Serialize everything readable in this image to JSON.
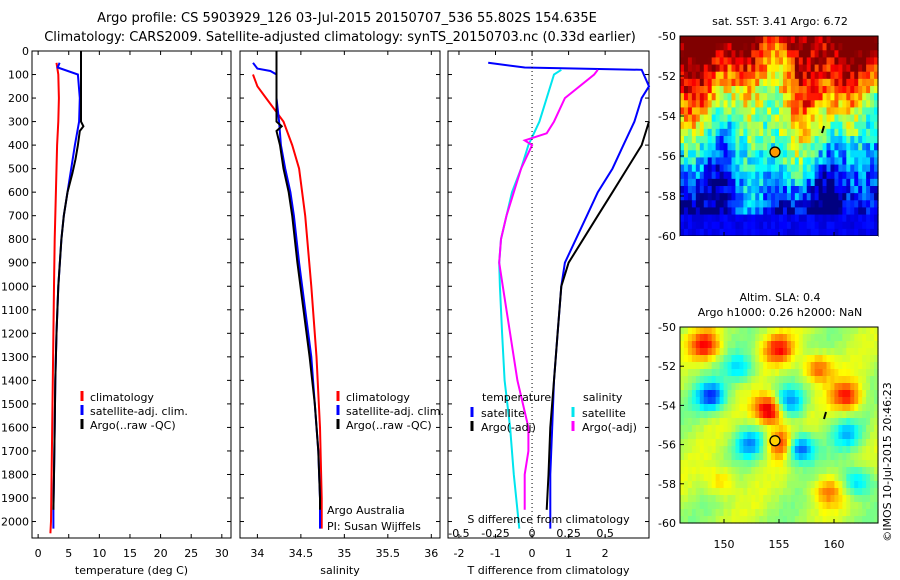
{
  "header": {
    "line1": "Argo profile: CS 5903929_126 03-Jul-2015 20150707_536 55.802S 154.635E",
    "line2": "Climatology: CARS2009. Satellite-adjusted climatology: synTS_20150703.nc (0.33d earlier)"
  },
  "watermark": "©IMOS 10-Jul-2015 20:46:23",
  "colors": {
    "red": "#ff0000",
    "blue": "#0000ff",
    "black": "#000000",
    "cyan": "#00e5ee",
    "magenta": "#ff00ff"
  },
  "chart_data": [
    {
      "type": "line",
      "id": "temperature",
      "xlabel": "temperature (deg C)",
      "ylabel": "",
      "xlim": [
        -1,
        31.5
      ],
      "ylim": [
        2070,
        0
      ],
      "xticks": [
        0,
        5,
        10,
        15,
        20,
        25,
        30
      ],
      "yticks": [
        0,
        100,
        200,
        300,
        400,
        500,
        600,
        700,
        800,
        900,
        1000,
        1100,
        1200,
        1300,
        1400,
        1500,
        1600,
        1700,
        1800,
        1900,
        2000
      ],
      "legend": [
        "climatology",
        "satellite-adj. clim.",
        "Argo(..raw -QC)"
      ],
      "series": [
        {
          "name": "climatology",
          "color": "red",
          "points": [
            [
              3.0,
              50
            ],
            [
              3.3,
              100
            ],
            [
              3.4,
              200
            ],
            [
              3.3,
              300
            ],
            [
              3.1,
              400
            ],
            [
              2.9,
              600
            ],
            [
              2.7,
              800
            ],
            [
              2.6,
              1000
            ],
            [
              2.5,
              1200
            ],
            [
              2.4,
              1400
            ],
            [
              2.3,
              1600
            ],
            [
              2.2,
              1800
            ],
            [
              2.1,
              2000
            ],
            [
              2.0,
              2050
            ]
          ]
        },
        {
          "name": "satellite-adj. clim.",
          "color": "blue",
          "points": [
            [
              3.5,
              50
            ],
            [
              3.2,
              70
            ],
            [
              6.5,
              100
            ],
            [
              6.8,
              200
            ],
            [
              6.7,
              300
            ],
            [
              6.0,
              400
            ],
            [
              5.4,
              500
            ],
            [
              4.8,
              600
            ],
            [
              4.2,
              700
            ],
            [
              3.8,
              800
            ],
            [
              3.3,
              1000
            ],
            [
              3.0,
              1200
            ],
            [
              2.8,
              1400
            ],
            [
              2.7,
              1600
            ],
            [
              2.6,
              1800
            ],
            [
              2.5,
              1950
            ],
            [
              2.5,
              2030
            ]
          ]
        },
        {
          "name": "Argo(..raw -QC)",
          "color": "black",
          "points": [
            [
              7.0,
              0
            ],
            [
              7.0,
              100
            ],
            [
              7.0,
              200
            ],
            [
              7.0,
              300
            ],
            [
              7.4,
              320
            ],
            [
              6.8,
              340
            ],
            [
              6.5,
              400
            ],
            [
              6.3,
              430
            ],
            [
              6.1,
              460
            ],
            [
              5.6,
              520
            ],
            [
              4.8,
              600
            ],
            [
              4.2,
              700
            ],
            [
              3.8,
              800
            ],
            [
              3.3,
              1000
            ],
            [
              3.0,
              1200
            ],
            [
              2.8,
              1400
            ],
            [
              2.7,
              1600
            ],
            [
              2.6,
              1800
            ],
            [
              2.5,
              1950
            ]
          ]
        }
      ]
    },
    {
      "type": "line",
      "id": "salinity",
      "xlabel": "salinity",
      "ylabel": "",
      "xlim": [
        33.8,
        36.1
      ],
      "ylim": [
        2070,
        0
      ],
      "xticks": [
        34,
        34.5,
        35,
        35.5,
        36
      ],
      "legend": [
        "climatology",
        "satellite-adj. clim.",
        "Argo(..raw -QC)"
      ],
      "footer": [
        "Argo Australia",
        "PI: Susan Wijffels"
      ],
      "series": [
        {
          "name": "climatology",
          "color": "red",
          "points": [
            [
              33.95,
              100
            ],
            [
              34.0,
              150
            ],
            [
              34.1,
              200
            ],
            [
              34.2,
              250
            ],
            [
              34.3,
              300
            ],
            [
              34.4,
              400
            ],
            [
              34.48,
              500
            ],
            [
              34.55,
              700
            ],
            [
              34.62,
              1000
            ],
            [
              34.68,
              1300
            ],
            [
              34.72,
              1600
            ],
            [
              34.74,
              1900
            ],
            [
              34.74,
              2030
            ]
          ]
        },
        {
          "name": "satellite-adj. clim.",
          "color": "blue",
          "points": [
            [
              33.95,
              50
            ],
            [
              34.0,
              75
            ],
            [
              34.15,
              85
            ],
            [
              34.22,
              100
            ],
            [
              34.22,
              200
            ],
            [
              34.25,
              300
            ],
            [
              34.27,
              400
            ],
            [
              34.32,
              500
            ],
            [
              34.38,
              600
            ],
            [
              34.42,
              700
            ],
            [
              34.48,
              900
            ],
            [
              34.55,
              1100
            ],
            [
              34.62,
              1300
            ],
            [
              34.66,
              1500
            ],
            [
              34.7,
              1700
            ],
            [
              34.72,
              1900
            ],
            [
              34.72,
              2030
            ]
          ]
        },
        {
          "name": "Argo(..raw -QC)",
          "color": "black",
          "points": [
            [
              34.22,
              0
            ],
            [
              34.22,
              100
            ],
            [
              34.22,
              200
            ],
            [
              34.22,
              300
            ],
            [
              34.28,
              320
            ],
            [
              34.22,
              340
            ],
            [
              34.26,
              400
            ],
            [
              34.3,
              500
            ],
            [
              34.36,
              600
            ],
            [
              34.4,
              700
            ],
            [
              34.46,
              900
            ],
            [
              34.53,
              1100
            ],
            [
              34.6,
              1300
            ],
            [
              34.66,
              1500
            ],
            [
              34.7,
              1700
            ],
            [
              34.72,
              1900
            ],
            [
              34.72,
              1950
            ]
          ]
        }
      ]
    },
    {
      "type": "line",
      "id": "differences",
      "xlabel": "T difference from climatology",
      "xlabel_top": "S difference from climatology",
      "xlim": [
        -2.3,
        3.2
      ],
      "ylim": [
        2070,
        0
      ],
      "xticks": [
        -2,
        -1,
        0,
        1,
        2
      ],
      "s_xticks": [
        "-0.5",
        "-0.25",
        "0",
        "0.25",
        "0.5"
      ],
      "legend_titles": [
        "temperature",
        "salinity"
      ],
      "legend": [
        {
          "label": "satellite",
          "color": "blue"
        },
        {
          "label": "Argo(-adj)",
          "color": "black"
        },
        {
          "label": "satellite",
          "color": "cyan"
        },
        {
          "label": "Argo(-adj)",
          "color": "magenta"
        }
      ],
      "series": [
        {
          "name": "T satellite",
          "color": "blue",
          "points": [
            [
              -1.2,
              50
            ],
            [
              -0.2,
              70
            ],
            [
              3.0,
              80
            ],
            [
              3.2,
              150
            ],
            [
              3.0,
              200
            ],
            [
              2.8,
              300
            ],
            [
              2.5,
              400
            ],
            [
              2.2,
              500
            ],
            [
              1.8,
              600
            ],
            [
              1.5,
              700
            ],
            [
              1.2,
              800
            ],
            [
              0.9,
              900
            ],
            [
              0.8,
              1000
            ],
            [
              0.7,
              1200
            ],
            [
              0.6,
              1400
            ],
            [
              0.55,
              1600
            ],
            [
              0.5,
              1800
            ],
            [
              0.5,
              1950
            ],
            [
              0.5,
              2030
            ]
          ]
        },
        {
          "name": "T Argo(-adj)",
          "color": "black",
          "points": [
            [
              3.2,
              300
            ],
            [
              3.0,
              400
            ],
            [
              2.8,
              450
            ],
            [
              2.6,
              500
            ],
            [
              2.2,
              600
            ],
            [
              1.8,
              700
            ],
            [
              1.4,
              800
            ],
            [
              1.0,
              900
            ],
            [
              0.8,
              1000
            ],
            [
              0.7,
              1200
            ],
            [
              0.6,
              1400
            ],
            [
              0.5,
              1600
            ],
            [
              0.45,
              1800
            ],
            [
              0.4,
              1950
            ]
          ]
        },
        {
          "name": "S satellite",
          "color": "cyan",
          "points": [
            [
              0.8,
              80
            ],
            [
              0.6,
              100
            ],
            [
              0.4,
              200
            ],
            [
              0.2,
              300
            ],
            [
              -0.1,
              400
            ],
            [
              -0.3,
              500
            ],
            [
              -0.55,
              600
            ],
            [
              -0.7,
              700
            ],
            [
              -0.85,
              800
            ],
            [
              -0.9,
              900
            ],
            [
              -0.88,
              1000
            ],
            [
              -0.82,
              1200
            ],
            [
              -0.75,
              1400
            ],
            [
              -0.6,
              1600
            ],
            [
              -0.5,
              1800
            ],
            [
              -0.4,
              1950
            ],
            [
              -0.35,
              2030
            ]
          ]
        },
        {
          "name": "S Argo(-adj)",
          "color": "magenta",
          "points": [
            [
              1.8,
              80
            ],
            [
              1.7,
              100
            ],
            [
              0.9,
              200
            ],
            [
              0.6,
              300
            ],
            [
              0.4,
              350
            ],
            [
              -0.2,
              380
            ],
            [
              0.0,
              400
            ],
            [
              -0.3,
              500
            ],
            [
              -0.5,
              600
            ],
            [
              -0.7,
              700
            ],
            [
              -0.85,
              800
            ],
            [
              -0.9,
              900
            ],
            [
              -0.8,
              1000
            ],
            [
              -0.6,
              1200
            ],
            [
              -0.4,
              1400
            ],
            [
              -0.1,
              1600
            ],
            [
              -0.1,
              1700
            ],
            [
              -0.2,
              1800
            ],
            [
              -0.2,
              1950
            ]
          ]
        }
      ]
    },
    {
      "type": "heatmap",
      "id": "sst-map",
      "title": "sat. SST: 3.41  Argo: 6.72",
      "xlim": [
        146,
        164
      ],
      "ylim": [
        -60,
        -50
      ],
      "xticks": [
        150,
        155,
        160
      ],
      "yticks": [
        -50,
        -52,
        -54,
        -56,
        -58,
        -60
      ],
      "marker": {
        "lon": 154.635,
        "lat": -55.802
      }
    },
    {
      "type": "heatmap",
      "id": "sla-map",
      "title_line1": "Altim. SLA: 0.4",
      "title_line2": "Argo h1000: 0.26 h2000: NaN",
      "xlim": [
        146,
        164
      ],
      "ylim": [
        -60,
        -50
      ],
      "xticks": [
        150,
        155,
        160
      ],
      "yticks": [
        -50,
        -52,
        -54,
        -56,
        -58,
        -60
      ],
      "marker": {
        "lon": 154.635,
        "lat": -55.802
      }
    }
  ]
}
